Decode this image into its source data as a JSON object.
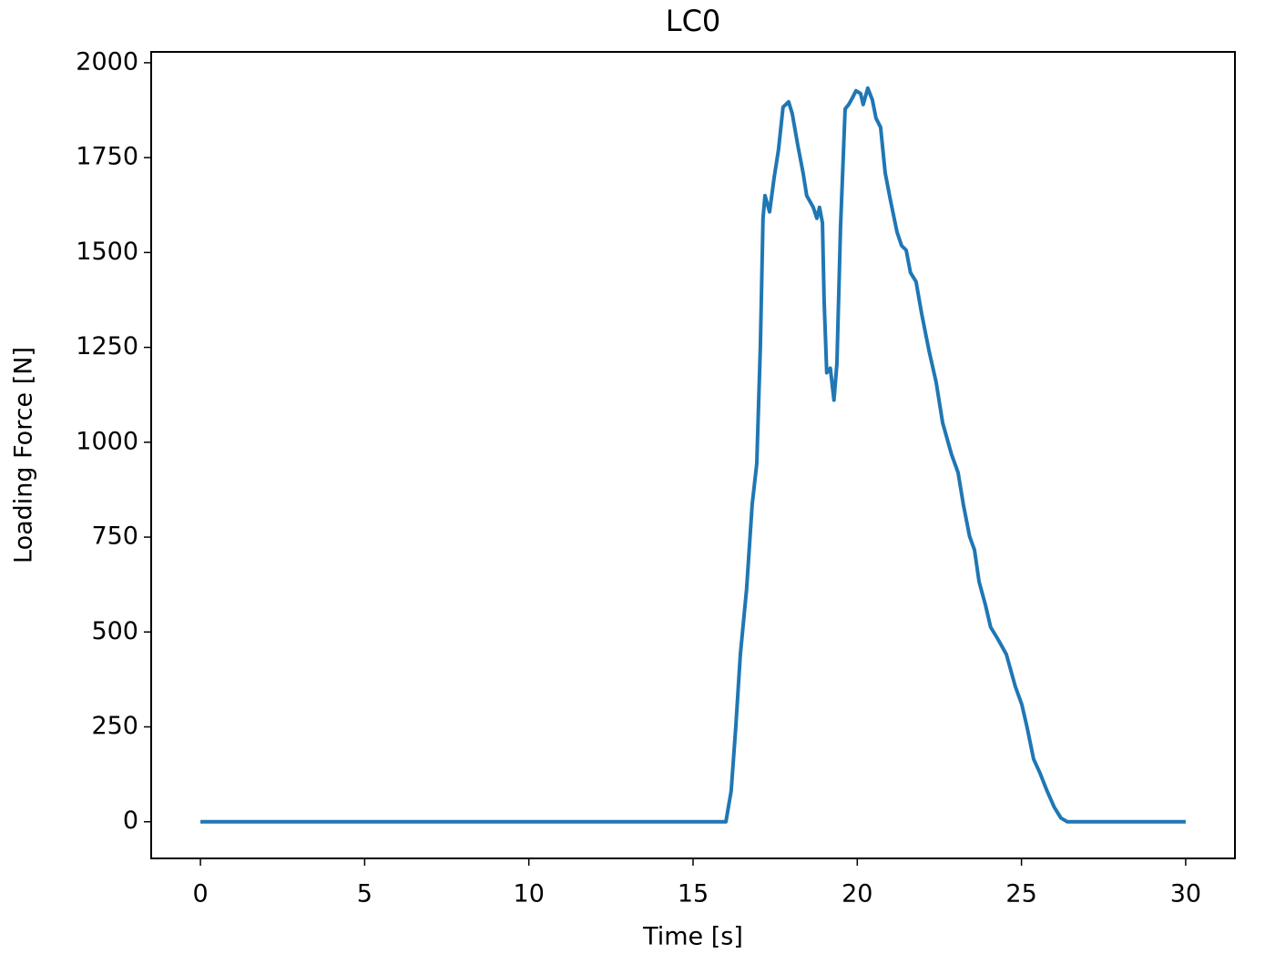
{
  "chart_data": {
    "type": "line",
    "title": "LC0",
    "x_label": "Time [s]",
    "y_label": "Loading Force [N]",
    "x": [
      0,
      16.0,
      16.16,
      16.3,
      16.44,
      16.63,
      16.8,
      16.94,
      17.05,
      17.13,
      17.19,
      17.33,
      17.47,
      17.6,
      17.74,
      17.91,
      18.02,
      18.19,
      18.35,
      18.46,
      18.66,
      18.77,
      18.85,
      18.94,
      18.99,
      19.07,
      19.18,
      19.29,
      19.38,
      19.49,
      19.63,
      19.74,
      19.85,
      19.96,
      20.1,
      20.18,
      20.32,
      20.46,
      20.57,
      20.71,
      20.85,
      21.01,
      21.21,
      21.35,
      21.49,
      21.62,
      21.79,
      21.96,
      22.18,
      22.4,
      22.6,
      22.87,
      23.07,
      23.23,
      23.42,
      23.57,
      23.71,
      23.9,
      24.06,
      24.31,
      24.54,
      24.81,
      25.01,
      25.17,
      25.37,
      25.56,
      25.78,
      26.0,
      26.2,
      26.39,
      30
    ],
    "series": [
      {
        "name": "LC0",
        "color": "#1f77b4",
        "values": [
          0,
          0,
          81,
          249,
          441,
          613,
          836,
          944,
          1255,
          1590,
          1650,
          1607,
          1698,
          1770,
          1883,
          1897,
          1866,
          1782,
          1710,
          1650,
          1619,
          1590,
          1619,
          1578,
          1375,
          1183,
          1195,
          1111,
          1207,
          1566,
          1878,
          1890,
          1907,
          1926,
          1919,
          1890,
          1933,
          1902,
          1854,
          1830,
          1710,
          1638,
          1554,
          1518,
          1506,
          1447,
          1423,
          1339,
          1243,
          1159,
          1051,
          968,
          920,
          836,
          752,
          716,
          632,
          572,
          513,
          477,
          441,
          357,
          309,
          249,
          165,
          129,
          81,
          38,
          10,
          0,
          0
        ]
      }
    ],
    "xlim": [
      -1.5,
      31.5
    ],
    "ylim": [
      -96.6,
      2028.6
    ],
    "xticks": [
      0,
      5,
      10,
      15,
      20,
      25,
      30
    ],
    "yticks": [
      0,
      250,
      500,
      750,
      1000,
      1250,
      1500,
      1750,
      2000
    ]
  }
}
